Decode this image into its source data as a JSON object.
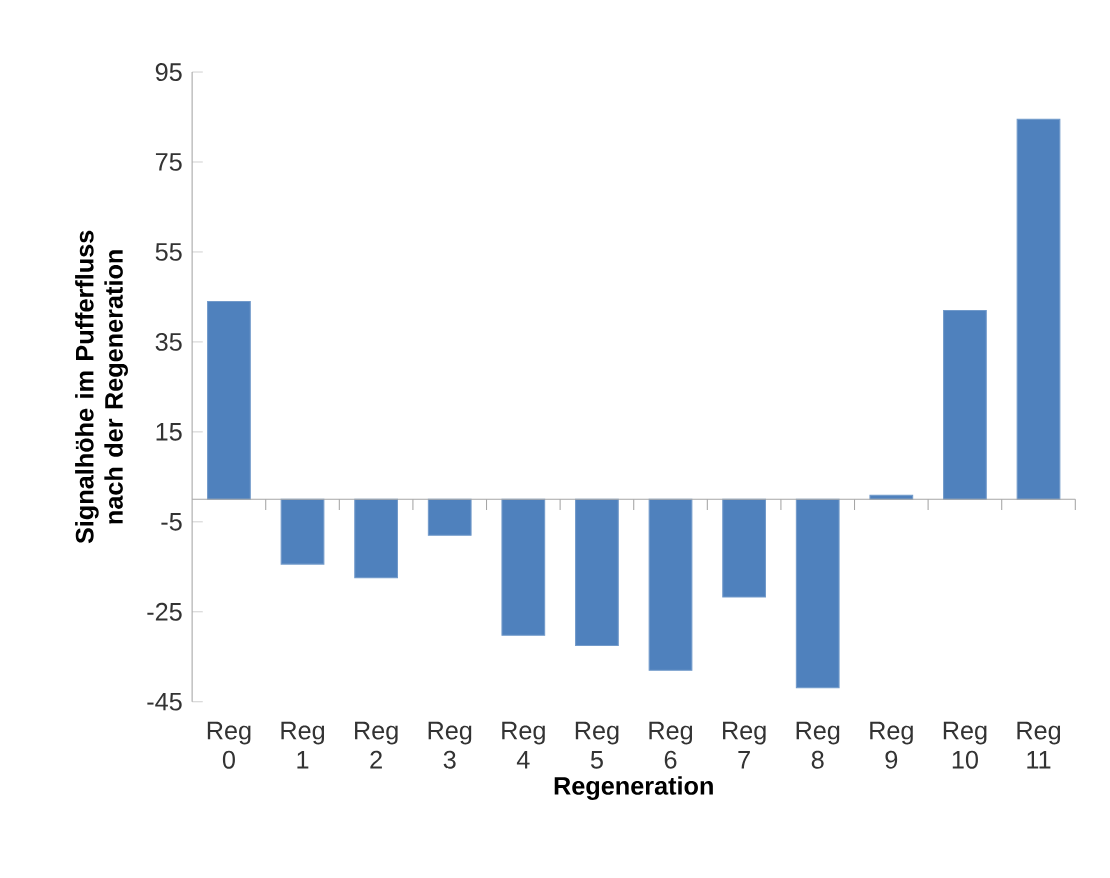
{
  "chart_data": {
    "type": "bar",
    "xlabel": "Regeneration",
    "ylabel": "Signalhöhe im Pufferfluss nach der Regeneration",
    "categories": [
      "Reg 0",
      "Reg 1",
      "Reg 2",
      "Reg 3",
      "Reg 4",
      "Reg 5",
      "Reg 6",
      "Reg 7",
      "Reg 8",
      "Reg 9",
      "Reg 10",
      "Reg 11"
    ],
    "values": [
      44,
      -14.4,
      -17.4,
      -8,
      -30.2,
      -32.5,
      -38,
      -21.7,
      -41.9,
      0.9,
      42,
      84.5
    ],
    "color": "#4f81bd",
    "ylim": [
      -45,
      95
    ],
    "yticks": [
      -45,
      -25,
      -5,
      15,
      35,
      55,
      75,
      95
    ],
    "grid": false
  }
}
